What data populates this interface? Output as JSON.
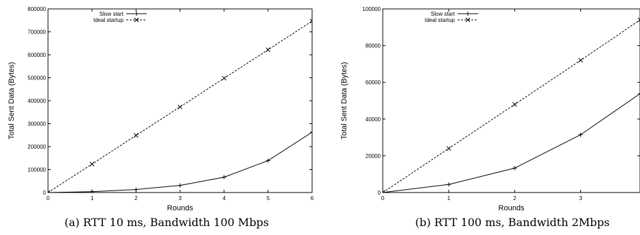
{
  "chart_data": [
    {
      "type": "line",
      "caption": "(a) RTT 10 ms, Bandwidth 100 Mbps",
      "xlabel": "Rounds",
      "ylabel": "Total Sent Data (Bytes)",
      "xlim": [
        0,
        6
      ],
      "ylim": [
        0,
        800000
      ],
      "xticks": [
        "0",
        "1",
        "2",
        "3",
        "4",
        "5",
        "6"
      ],
      "yticks": [
        "0",
        "100000",
        "200000",
        "300000",
        "400000",
        "500000",
        "600000",
        "700000",
        "800000"
      ],
      "legend_position": "top-left",
      "grid": false,
      "series": [
        {
          "name": "Slow start",
          "marker": "plus",
          "dash": "solid",
          "x": [
            0,
            1,
            2,
            3,
            4,
            5,
            6
          ],
          "y": [
            0,
            4000,
            13000,
            31000,
            67000,
            139000,
            263000
          ]
        },
        {
          "name": "Ideal startup",
          "marker": "cross",
          "dash": "dashed",
          "x": [
            0,
            1,
            2,
            3,
            4,
            5,
            6
          ],
          "y": [
            0,
            124000,
            249000,
            373000,
            498000,
            622000,
            747000
          ]
        }
      ]
    },
    {
      "type": "line",
      "caption": "(b) RTT 100 ms, Bandwidth 2Mbps",
      "xlabel": "Rounds",
      "ylabel": "Total Sent Data (Bytes)",
      "xlim": [
        0,
        3.9
      ],
      "ylim": [
        0,
        100000
      ],
      "xticks": [
        "0",
        "1",
        "2",
        "3"
      ],
      "xtick_values": [
        0,
        1,
        2,
        3
      ],
      "yticks": [
        "0",
        "20000",
        "40000",
        "60000",
        "80000",
        "100000"
      ],
      "legend_position": "top-left",
      "grid": false,
      "series": [
        {
          "name": "Slow start",
          "marker": "plus",
          "dash": "solid",
          "x": [
            0,
            1,
            2,
            3,
            3.9
          ],
          "y": [
            0,
            4400,
            13300,
            31500,
            53800
          ]
        },
        {
          "name": "Ideal startup",
          "marker": "cross",
          "dash": "dashed",
          "x": [
            0,
            1,
            2,
            3,
            3.9
          ],
          "y": [
            0,
            24000,
            48000,
            72000,
            94000
          ]
        }
      ]
    }
  ]
}
